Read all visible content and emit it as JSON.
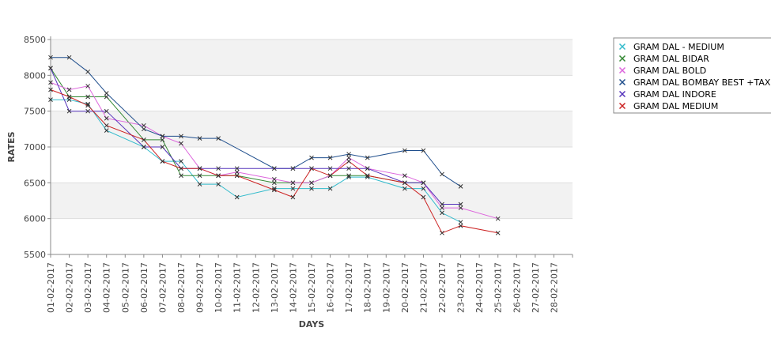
{
  "chart_data": {
    "type": "line",
    "title": "",
    "xlabel": "DAYS",
    "ylabel": "RATES",
    "ylim": [
      5500,
      8500
    ],
    "yticks": [
      5500,
      6000,
      6500,
      7000,
      7500,
      8000,
      8500
    ],
    "grid": "horizontal bands",
    "legend_position": "top-right",
    "categories": [
      "01-02-2017",
      "02-02-2017",
      "03-02-2017",
      "04-02-2017",
      "05-02-2017",
      "06-02-2017",
      "07-02-2017",
      "08-02-2017",
      "09-02-2017",
      "10-02-2017",
      "11-02-2017",
      "12-02-2017",
      "13-02-2017",
      "14-02-2017",
      "15-02-2017",
      "16-02-2017",
      "17-02-2017",
      "18-02-2017",
      "19-02-2017",
      "20-02-2017",
      "21-02-2017",
      "22-02-2017",
      "23-02-2017",
      "24-02-2017",
      "25-02-2017",
      "26-02-2017",
      "27-02-2017",
      "28-02-2017"
    ],
    "series": [
      {
        "name": "GRAM DAL - MEDIUM",
        "color": "#33bbcc",
        "values": [
          7660,
          7660,
          7600,
          7230,
          null,
          7000,
          6800,
          6800,
          6480,
          6480,
          6300,
          null,
          6420,
          6420,
          6420,
          6420,
          6580,
          6580,
          null,
          6420,
          6420,
          6080,
          5950,
          null,
          null,
          null,
          null,
          null
        ]
      },
      {
        "name": "GRAM DAL BIDAR",
        "color": "#338833",
        "values": [
          8100,
          7700,
          7700,
          7700,
          null,
          7100,
          7100,
          6600,
          6600,
          6600,
          6600,
          null,
          6500,
          6500,
          6500,
          6600,
          6600,
          6600,
          null,
          6500,
          6500,
          null,
          null,
          null,
          null,
          null,
          null,
          null
        ]
      },
      {
        "name": "GRAM DAL BOLD",
        "color": "#dd66dd",
        "values": [
          7900,
          7800,
          7850,
          7400,
          null,
          7300,
          7150,
          7050,
          6700,
          6600,
          6650,
          null,
          6550,
          6500,
          6500,
          6600,
          6850,
          6700,
          null,
          6600,
          6500,
          6150,
          6150,
          null,
          6000,
          null,
          null,
          null
        ]
      },
      {
        "name": "GRAM DAL BOMBAY BEST +TAX",
        "color": "#1f4e8c",
        "values": [
          8250,
          8250,
          8050,
          7750,
          null,
          7250,
          7150,
          7150,
          7120,
          7120,
          null,
          null,
          6700,
          6700,
          6850,
          6850,
          6900,
          6850,
          null,
          6950,
          6950,
          6620,
          6450,
          null,
          null,
          null,
          null,
          null
        ]
      },
      {
        "name": "GRAM DAL INDORE",
        "color": "#5533bb",
        "values": [
          8100,
          7500,
          7500,
          7500,
          null,
          7000,
          7000,
          6700,
          6700,
          6700,
          6700,
          null,
          6700,
          6700,
          6700,
          6700,
          6700,
          6700,
          null,
          6500,
          6500,
          6200,
          6200,
          null,
          null,
          null,
          null,
          null
        ]
      },
      {
        "name": "GRAM DAL MEDIUM",
        "color": "#cc2222",
        "values": [
          7800,
          7700,
          7580,
          7300,
          null,
          7100,
          6800,
          6700,
          6700,
          6600,
          6600,
          null,
          6400,
          6300,
          6700,
          6600,
          6800,
          6600,
          null,
          6500,
          6300,
          5800,
          5900,
          null,
          5800,
          null,
          null,
          null
        ]
      }
    ]
  }
}
